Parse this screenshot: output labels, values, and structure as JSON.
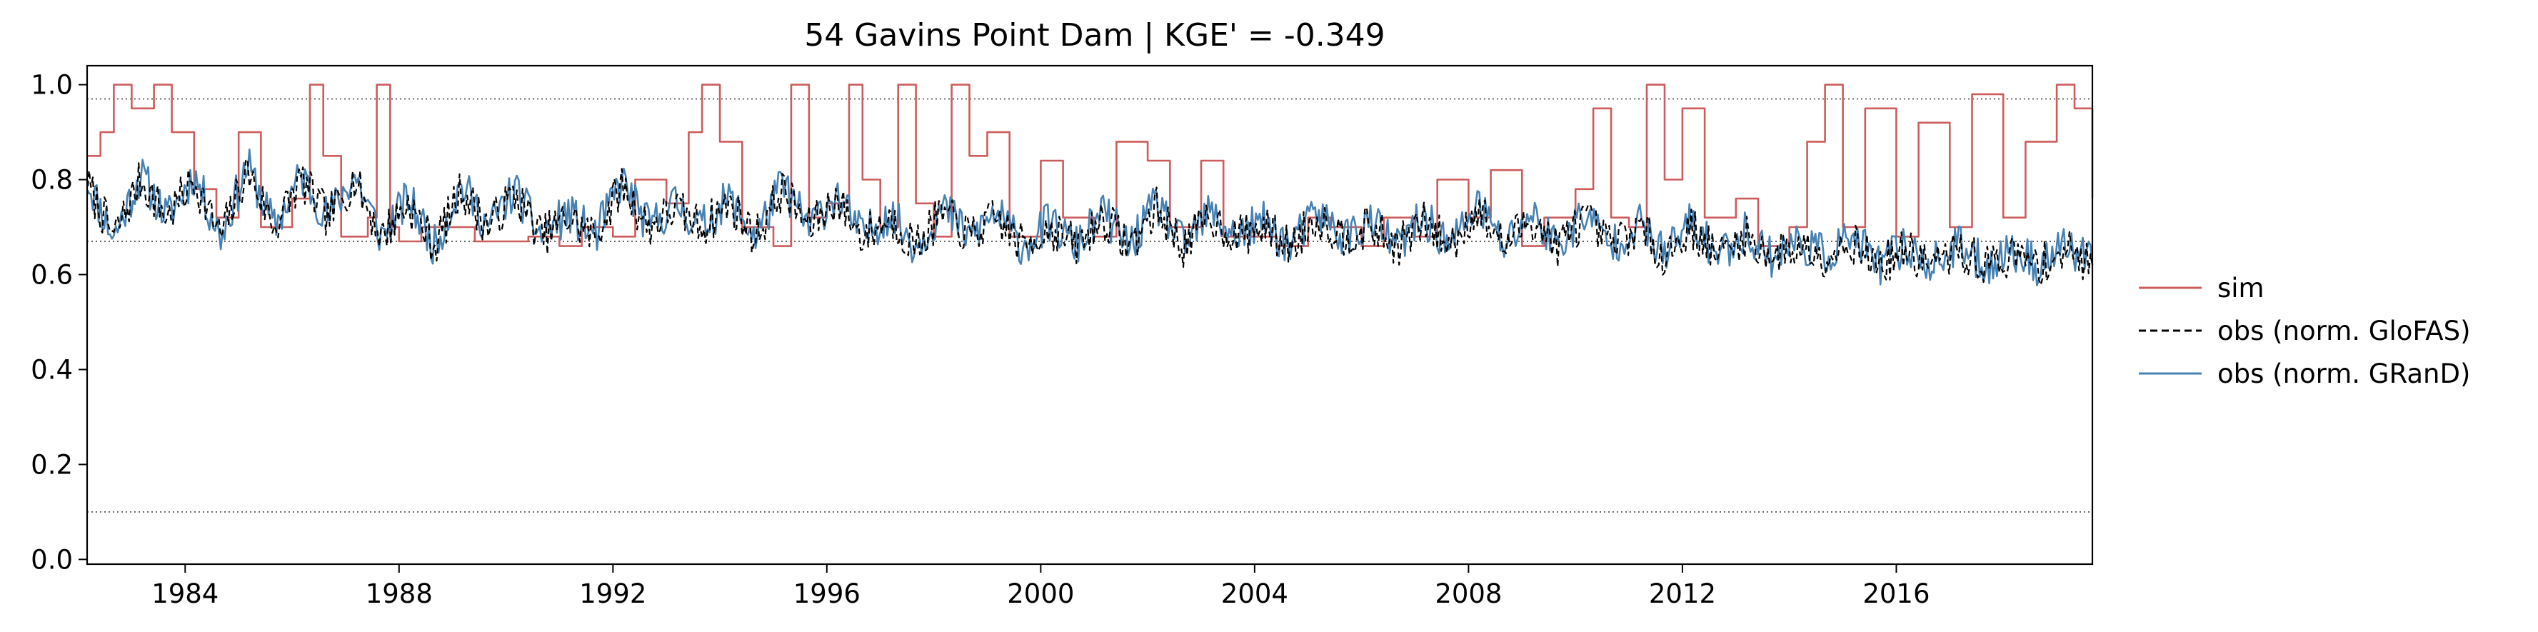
{
  "chart_data": {
    "type": "line",
    "title": "54  Gavins Point Dam | KGE' = -0.349",
    "xlabel": "",
    "ylabel": "",
    "xlim": [
      "1982-03",
      "2019-09"
    ],
    "ylim": [
      -0.01,
      1.04
    ],
    "x_ticks": [
      "1984",
      "1988",
      "1992",
      "1996",
      "2000",
      "2004",
      "2008",
      "2012",
      "2016"
    ],
    "y_ticks": [
      "0.0",
      "0.2",
      "0.4",
      "0.6",
      "0.8",
      "1.0"
    ],
    "reference_lines": [
      0.97,
      0.67,
      0.1
    ],
    "grid": false,
    "legend_position": "right, outside plot",
    "colors": {
      "sim": "#cd5c5c",
      "obs_glofas": "#000000",
      "obs_grand": "#4682b4"
    },
    "series": [
      {
        "name": "sim",
        "style": "solid",
        "x": [
          "1982-03",
          "1982-06",
          "1982-09",
          "1983-01",
          "1983-06",
          "1983-10",
          "1984-03",
          "1984-08",
          "1985-01",
          "1985-06",
          "1986-01",
          "1986-05",
          "1986-08",
          "1986-12",
          "1987-06",
          "1987-08",
          "1987-11",
          "1988-01",
          "1988-06",
          "1989-01",
          "1989-06",
          "1990-01",
          "1990-06",
          "1991-01",
          "1991-06",
          "1992-01",
          "1992-06",
          "1993-01",
          "1993-06",
          "1993-09",
          "1994-01",
          "1994-06",
          "1995-01",
          "1995-05",
          "1995-09",
          "1996-01",
          "1996-06",
          "1996-09",
          "1997-01",
          "1997-05",
          "1997-09",
          "1998-01",
          "1998-05",
          "1998-09",
          "1999-01",
          "1999-06",
          "2000-01",
          "2000-06",
          "2001-01",
          "2001-06",
          "2002-01",
          "2002-06",
          "2003-01",
          "2003-06",
          "2004-01",
          "2004-06",
          "2005-01",
          "2005-06",
          "2006-01",
          "2006-06",
          "2007-01",
          "2007-06",
          "2008-01",
          "2008-06",
          "2009-01",
          "2009-06",
          "2010-01",
          "2010-05",
          "2010-09",
          "2011-01",
          "2011-05",
          "2011-09",
          "2012-01",
          "2012-06",
          "2013-01",
          "2013-06",
          "2014-01",
          "2014-05",
          "2014-09",
          "2015-01",
          "2015-06",
          "2016-01",
          "2016-06",
          "2017-01",
          "2017-06",
          "2018-01",
          "2018-06",
          "2019-01",
          "2019-05",
          "2019-09"
        ],
        "values": [
          0.85,
          0.9,
          1.0,
          0.95,
          1.0,
          0.9,
          0.78,
          0.72,
          0.9,
          0.7,
          0.76,
          1.0,
          0.85,
          0.68,
          0.72,
          1.0,
          0.7,
          0.67,
          0.7,
          0.7,
          0.67,
          0.67,
          0.68,
          0.66,
          0.7,
          0.68,
          0.8,
          0.75,
          0.9,
          1.0,
          0.88,
          0.7,
          0.66,
          1.0,
          0.72,
          0.75,
          1.0,
          0.8,
          0.7,
          1.0,
          0.75,
          0.68,
          1.0,
          0.85,
          0.9,
          0.68,
          0.84,
          0.72,
          0.68,
          0.88,
          0.84,
          0.7,
          0.84,
          0.68,
          0.68,
          0.66,
          0.72,
          0.7,
          0.66,
          0.72,
          0.68,
          0.8,
          0.72,
          0.82,
          0.66,
          0.72,
          0.78,
          0.95,
          0.72,
          0.7,
          1.0,
          0.8,
          0.95,
          0.72,
          0.76,
          0.66,
          0.7,
          0.88,
          1.0,
          0.7,
          0.95,
          0.68,
          0.92,
          0.7,
          0.98,
          0.72,
          0.88,
          1.0,
          0.95,
          0.76
        ]
      },
      {
        "name": "obs (norm. GloFAS)",
        "style": "dashed",
        "x": [
          "1982-03",
          "1982-09",
          "1983-03",
          "1983-09",
          "1984-03",
          "1984-09",
          "1985-03",
          "1985-09",
          "1986-03",
          "1986-09",
          "1987-03",
          "1987-09",
          "1988-03",
          "1988-09",
          "1989-03",
          "1989-09",
          "1990-03",
          "1990-09",
          "1991-03",
          "1991-09",
          "1992-03",
          "1992-09",
          "1993-03",
          "1993-09",
          "1994-03",
          "1994-09",
          "1995-03",
          "1995-09",
          "1996-03",
          "1996-09",
          "1997-03",
          "1997-09",
          "1998-03",
          "1998-09",
          "1999-03",
          "1999-09",
          "2000-03",
          "2000-09",
          "2001-03",
          "2001-09",
          "2002-03",
          "2002-09",
          "2003-03",
          "2003-09",
          "2004-03",
          "2004-09",
          "2005-03",
          "2005-09",
          "2006-03",
          "2006-09",
          "2007-03",
          "2007-09",
          "2008-03",
          "2008-09",
          "2009-03",
          "2009-09",
          "2010-03",
          "2010-09",
          "2011-03",
          "2011-09",
          "2012-03",
          "2012-09",
          "2013-03",
          "2013-09",
          "2014-03",
          "2014-09",
          "2015-03",
          "2015-09",
          "2016-03",
          "2016-09",
          "2017-03",
          "2017-09",
          "2018-03",
          "2018-09",
          "2019-03",
          "2019-09"
        ],
        "values": [
          0.79,
          0.68,
          0.8,
          0.72,
          0.8,
          0.68,
          0.82,
          0.7,
          0.8,
          0.72,
          0.8,
          0.68,
          0.75,
          0.66,
          0.78,
          0.7,
          0.77,
          0.68,
          0.72,
          0.68,
          0.79,
          0.7,
          0.74,
          0.7,
          0.75,
          0.68,
          0.78,
          0.7,
          0.76,
          0.68,
          0.72,
          0.66,
          0.73,
          0.68,
          0.72,
          0.66,
          0.7,
          0.66,
          0.72,
          0.66,
          0.74,
          0.66,
          0.72,
          0.68,
          0.7,
          0.66,
          0.72,
          0.68,
          0.7,
          0.66,
          0.71,
          0.66,
          0.74,
          0.66,
          0.72,
          0.66,
          0.72,
          0.66,
          0.7,
          0.64,
          0.7,
          0.64,
          0.68,
          0.64,
          0.66,
          0.64,
          0.67,
          0.62,
          0.65,
          0.62,
          0.65,
          0.62,
          0.64,
          0.62,
          0.65,
          0.62
        ]
      },
      {
        "name": "obs (norm. GRanD)",
        "style": "solid",
        "x": [
          "1982-03",
          "1982-09",
          "1983-03",
          "1983-09",
          "1984-03",
          "1984-09",
          "1985-03",
          "1985-09",
          "1986-03",
          "1986-09",
          "1987-03",
          "1987-09",
          "1988-03",
          "1988-09",
          "1989-03",
          "1989-09",
          "1990-03",
          "1990-09",
          "1991-03",
          "1991-09",
          "1992-03",
          "1992-09",
          "1993-03",
          "1993-09",
          "1994-03",
          "1994-09",
          "1995-03",
          "1995-09",
          "1996-03",
          "1996-09",
          "1997-03",
          "1997-09",
          "1998-03",
          "1998-09",
          "1999-03",
          "1999-09",
          "2000-03",
          "2000-09",
          "2001-03",
          "2001-09",
          "2002-03",
          "2002-09",
          "2003-03",
          "2003-09",
          "2004-03",
          "2004-09",
          "2005-03",
          "2005-09",
          "2006-03",
          "2006-09",
          "2007-03",
          "2007-09",
          "2008-03",
          "2008-09",
          "2009-03",
          "2009-09",
          "2010-03",
          "2010-09",
          "2011-03",
          "2011-09",
          "2012-03",
          "2012-09",
          "2013-03",
          "2013-09",
          "2014-03",
          "2014-09",
          "2015-03",
          "2015-09",
          "2016-03",
          "2016-09",
          "2017-03",
          "2017-09",
          "2018-03",
          "2018-09",
          "2019-03",
          "2019-09"
        ],
        "values": [
          0.8,
          0.68,
          0.81,
          0.72,
          0.81,
          0.68,
          0.83,
          0.7,
          0.81,
          0.72,
          0.81,
          0.68,
          0.76,
          0.66,
          0.79,
          0.7,
          0.78,
          0.68,
          0.73,
          0.68,
          0.8,
          0.7,
          0.75,
          0.7,
          0.76,
          0.68,
          0.79,
          0.7,
          0.77,
          0.68,
          0.73,
          0.66,
          0.74,
          0.68,
          0.73,
          0.66,
          0.71,
          0.66,
          0.73,
          0.66,
          0.75,
          0.66,
          0.73,
          0.68,
          0.71,
          0.66,
          0.73,
          0.68,
          0.71,
          0.66,
          0.72,
          0.66,
          0.75,
          0.66,
          0.73,
          0.66,
          0.73,
          0.66,
          0.71,
          0.64,
          0.71,
          0.64,
          0.69,
          0.64,
          0.67,
          0.64,
          0.68,
          0.62,
          0.66,
          0.62,
          0.66,
          0.62,
          0.65,
          0.62,
          0.66,
          0.62
        ]
      }
    ]
  }
}
